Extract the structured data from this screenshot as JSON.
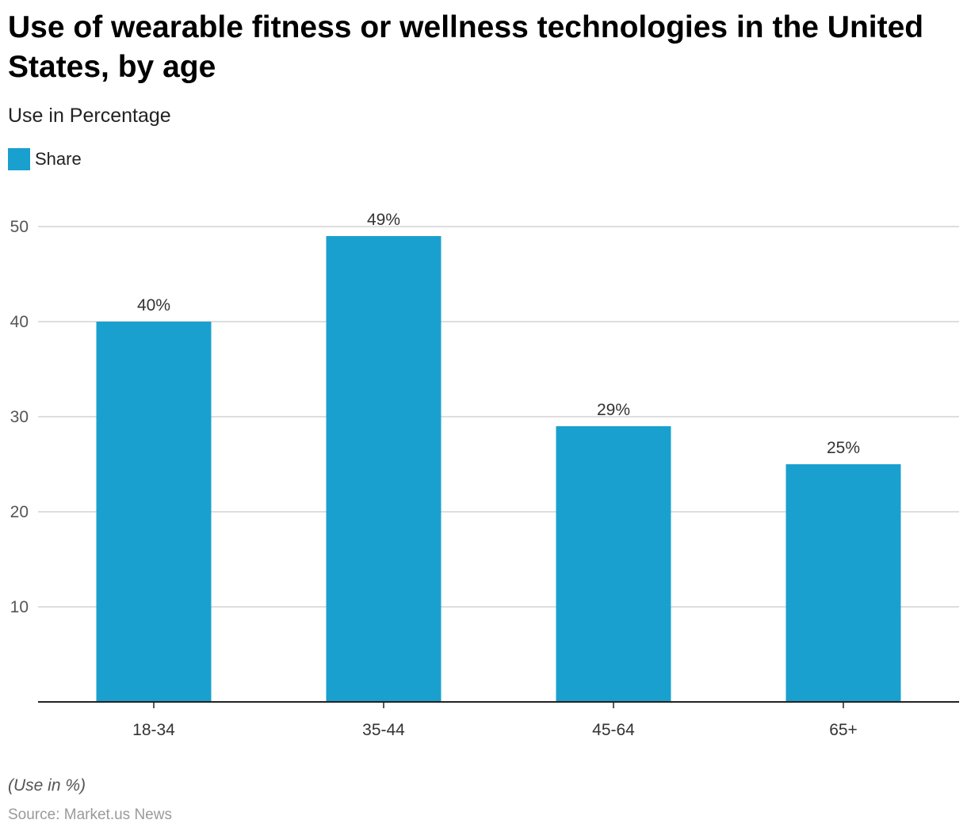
{
  "title": "Use of wearable fitness or wellness technologies in the United States, by age",
  "subtitle": "Use in Percentage",
  "legend": {
    "label": "Share",
    "color": "#1aa0ce"
  },
  "note": "(Use in %)",
  "source": "Source: Market.us News",
  "chart_data": {
    "type": "bar",
    "categories": [
      "18-34",
      "35-44",
      "45-64",
      "65+"
    ],
    "series": [
      {
        "name": "Share",
        "values": [
          40,
          49,
          29,
          25
        ],
        "labels": [
          "40%",
          "49%",
          "29%",
          "25%"
        ],
        "color": "#1aa0ce"
      }
    ],
    "yticks": [
      "10",
      "20",
      "30",
      "40",
      "50"
    ],
    "ylim": [
      0,
      50
    ],
    "grid": true,
    "legend_position": "top-left"
  }
}
